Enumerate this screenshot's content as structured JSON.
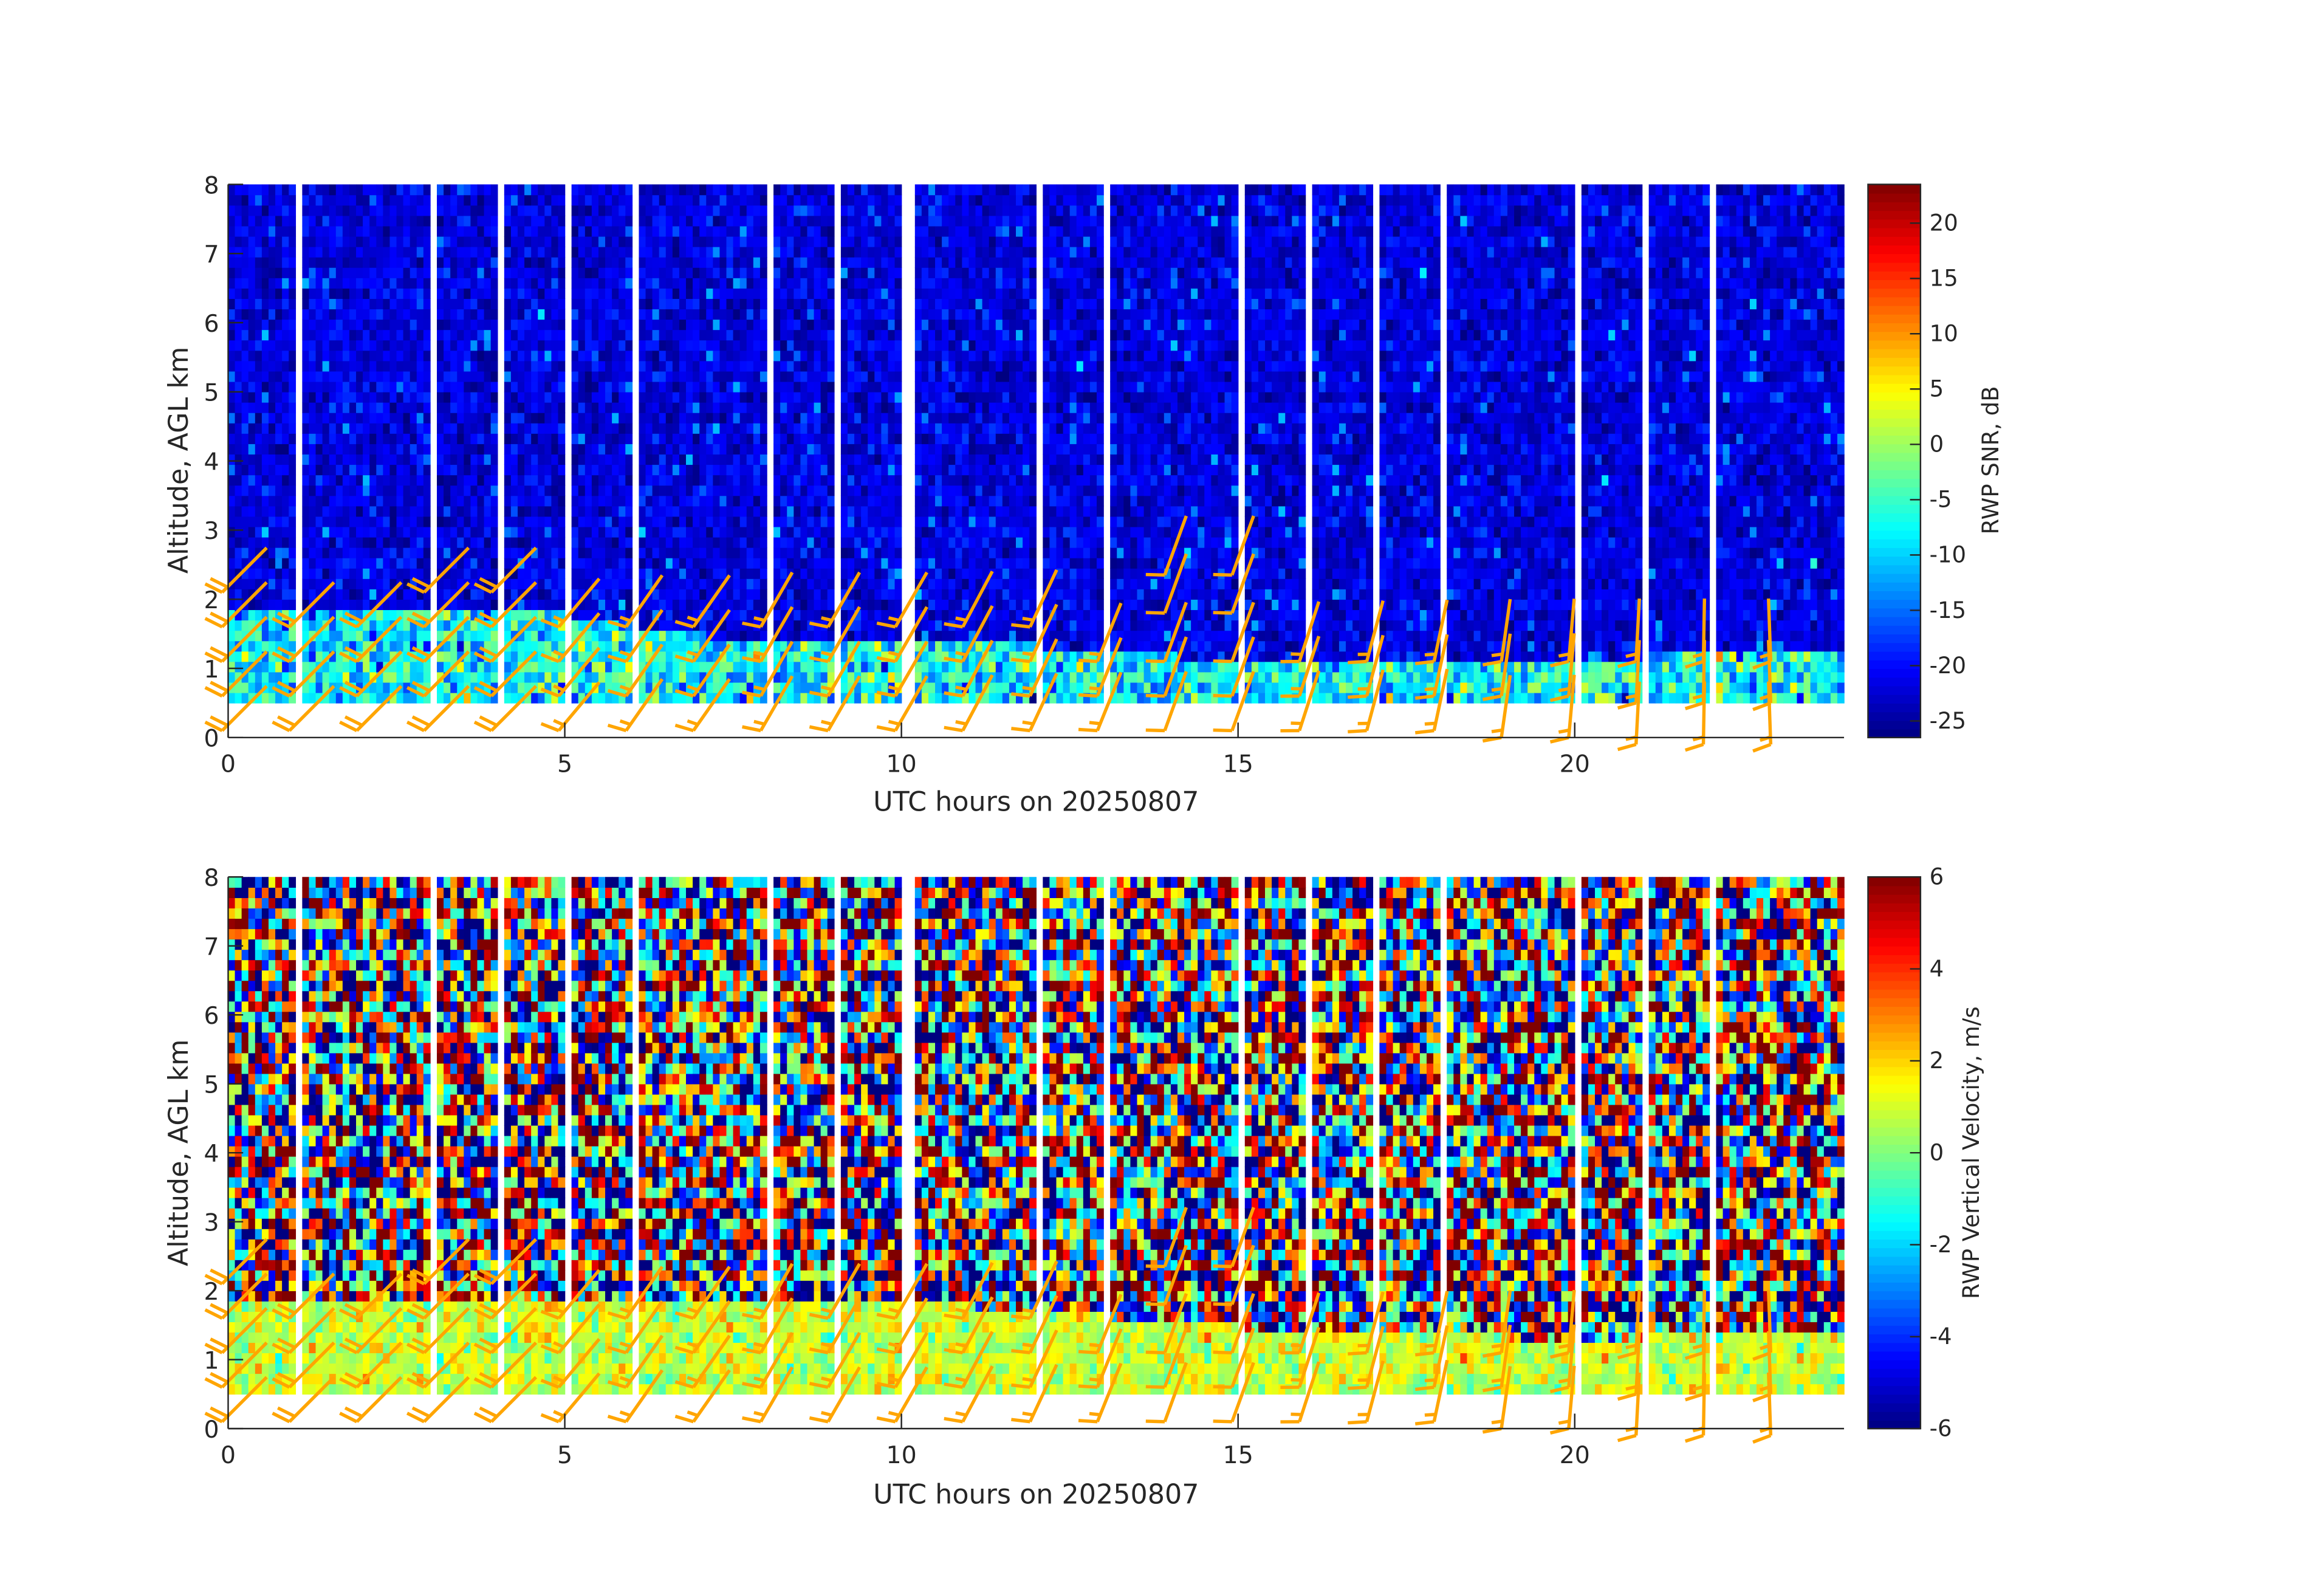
{
  "chart_data": [
    {
      "type": "heatmap",
      "xlabel": "UTC hours on 20250807",
      "ylabel": "Altitude, AGL km",
      "xlim": [
        0,
        24
      ],
      "ylim": [
        0,
        8
      ],
      "xticks": [
        "0",
        "5",
        "10",
        "15",
        "20"
      ],
      "yticks": [
        "0",
        "1",
        "2",
        "3",
        "4",
        "5",
        "6",
        "7",
        "8"
      ],
      "colorbar": {
        "label": "RWP SNR, dB",
        "colormap": "jet",
        "clim": [
          -26.5,
          23.5
        ],
        "ticks": [
          "-25",
          "-20",
          "-15",
          "-10",
          "-5",
          "0",
          "5",
          "10",
          "15",
          "20"
        ]
      },
      "data_range_km": [
        0.5,
        7.9
      ],
      "missing_hours": [
        1,
        3,
        4,
        5,
        6,
        8,
        9,
        10,
        10.1,
        12,
        13,
        15,
        16,
        17,
        18,
        20,
        21,
        22
      ],
      "background_value": -22,
      "boundary_layer_value": -8,
      "boundary_layer_top_km": [
        1.8,
        1.8,
        1.8,
        1.8,
        1.8,
        1.6,
        1.5,
        1.4,
        1.3,
        1.3,
        1.3,
        1.3,
        1.2,
        1.2,
        1.1,
        1.1,
        1.1,
        1.1,
        1.1,
        1.1,
        1.1,
        1.2,
        1.2,
        1.2
      ]
    },
    {
      "type": "heatmap",
      "xlabel": "UTC hours on 20250807",
      "ylabel": "Altitude, AGL km",
      "xlim": [
        0,
        24
      ],
      "ylim": [
        0,
        8
      ],
      "xticks": [
        "0",
        "5",
        "10",
        "15",
        "20"
      ],
      "yticks": [
        "0",
        "1",
        "2",
        "3",
        "4",
        "5",
        "6",
        "7",
        "8"
      ],
      "colorbar": {
        "label": "RWP Vertical Velocity, m/s",
        "colormap": "jet",
        "clim": [
          -6,
          6
        ],
        "ticks": [
          "-6",
          "-4",
          "-2",
          "0",
          "2",
          "4",
          "6"
        ]
      },
      "data_range_km": [
        0.5,
        7.9
      ],
      "missing_hours": [
        1,
        3,
        4,
        5,
        6,
        8,
        9,
        10,
        10.1,
        12,
        13,
        15,
        16,
        17,
        18,
        20,
        21,
        22
      ],
      "background_value": "noise ±6",
      "boundary_layer_value": 0.8,
      "boundary_layer_top_km": [
        1.8,
        1.8,
        1.8,
        1.8,
        1.8,
        1.7,
        1.7,
        1.7,
        1.7,
        1.7,
        1.7,
        1.6,
        1.6,
        1.5,
        1.5,
        1.4,
        1.4,
        1.4,
        1.4,
        1.2,
        1.2,
        1.4,
        1.4,
        1.4
      ]
    }
  ],
  "wind_barbs": {
    "color": "#FFA500",
    "units": "kt",
    "hours": [
      {
        "h": 0,
        "z": [
          0.1,
          0.6,
          1.1,
          1.6,
          2.1
        ],
        "dir": 45,
        "spd": 20
      },
      {
        "h": 1,
        "z": [
          0.1,
          0.6,
          1.1,
          1.6
        ],
        "dir": 45,
        "spd": 20
      },
      {
        "h": 2,
        "z": [
          0.1,
          0.6,
          1.1,
          1.6
        ],
        "dir": 45,
        "spd": 20
      },
      {
        "h": 3,
        "z": [
          0.1,
          0.6,
          1.1,
          1.6,
          2.1
        ],
        "dir": 45,
        "spd": 20
      },
      {
        "h": 4,
        "z": [
          0.1,
          0.6,
          1.1,
          1.6,
          2.1
        ],
        "dir": 45,
        "spd": 20
      },
      {
        "h": 5,
        "z": [
          0.1,
          0.6,
          1.1,
          1.6
        ],
        "dir": 40,
        "spd": 15
      },
      {
        "h": 6,
        "z": [
          0.1,
          0.6,
          1.1,
          1.6
        ],
        "dir": 35,
        "spd": 15
      },
      {
        "h": 7,
        "z": [
          0.1,
          0.6,
          1.1,
          1.6
        ],
        "dir": 35,
        "spd": 15
      },
      {
        "h": 8,
        "z": [
          0.1,
          0.6,
          1.1,
          1.6
        ],
        "dir": 30,
        "spd": 15
      },
      {
        "h": 9,
        "z": [
          0.1,
          0.6,
          1.1,
          1.6
        ],
        "dir": 30,
        "spd": 15
      },
      {
        "h": 10,
        "z": [
          0.1,
          0.6,
          1.1,
          1.6
        ],
        "dir": 30,
        "spd": 15
      },
      {
        "h": 11,
        "z": [
          0.1,
          0.6,
          1.1,
          1.6
        ],
        "dir": 28,
        "spd": 15
      },
      {
        "h": 12,
        "z": [
          0.1,
          0.6,
          1.1,
          1.6
        ],
        "dir": 25,
        "spd": 15
      },
      {
        "h": 13,
        "z": [
          0.1,
          0.6,
          1.1
        ],
        "dir": 22,
        "spd": 15
      },
      {
        "h": 14,
        "z": [
          0.1,
          0.6,
          1.1,
          1.8,
          2.35
        ],
        "dir": 20,
        "spd": 10
      },
      {
        "h": 15,
        "z": [
          0.1,
          0.6,
          1.1,
          1.8,
          2.35
        ],
        "dir": 20,
        "spd": 10
      },
      {
        "h": 16,
        "z": [
          0.1,
          0.6,
          1.1
        ],
        "dir": 18,
        "spd": 15
      },
      {
        "h": 17,
        "z": [
          0.1,
          0.6,
          1.1
        ],
        "dir": 15,
        "spd": 15
      },
      {
        "h": 18,
        "z": [
          0.1,
          0.6,
          1.1
        ],
        "dir": 12,
        "spd": 15
      },
      {
        "h": 19,
        "z": [
          0.0,
          0.6,
          1.1
        ],
        "dir": 8,
        "spd": 15
      },
      {
        "h": 20,
        "z": [
          0.0,
          0.6,
          1.1
        ],
        "dir": 5,
        "spd": 15
      },
      {
        "h": 21,
        "z": [
          -0.1,
          0.5,
          1.1
        ],
        "dir": 3,
        "spd": 15
      },
      {
        "h": 22,
        "z": [
          -0.1,
          0.5,
          1.1
        ],
        "dir": 1,
        "spd": 15
      },
      {
        "h": 23,
        "z": [
          -0.1,
          0.5,
          1.1
        ],
        "dir": 358,
        "spd": 15
      }
    ]
  }
}
